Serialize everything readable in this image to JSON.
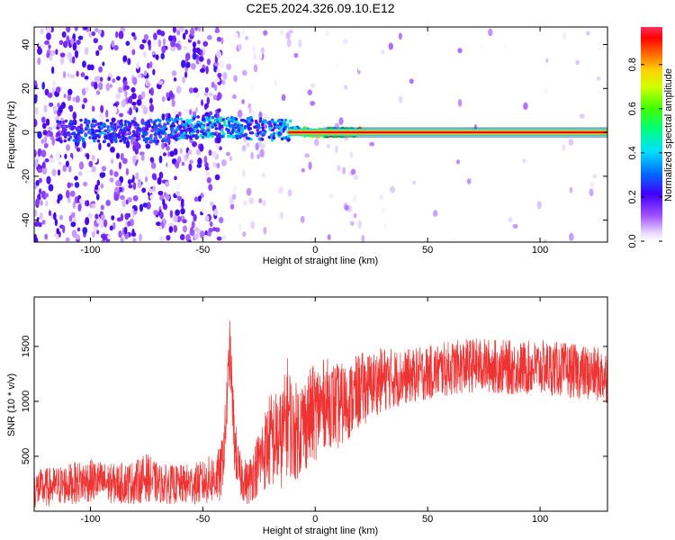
{
  "title": "C2E5.2024.326.09.10.E12",
  "chart_data": [
    {
      "type": "heatmap",
      "title": "",
      "xlabel": "Height of straight line (km)",
      "ylabel": "Frequency (Hz)",
      "xlim": [
        -125,
        130
      ],
      "ylim": [
        -50,
        48
      ],
      "xticks": [
        -100,
        -50,
        0,
        50,
        100
      ],
      "yticks": [
        -40,
        -20,
        0,
        20,
        40
      ],
      "grid": false,
      "colorbar": {
        "label": "Normalized spectral amplitude",
        "range": [
          0,
          0.97
        ],
        "ticks": [
          "0.0",
          "0.2",
          "0.4",
          "0.6",
          "0.8"
        ],
        "colormap": "rainbow"
      },
      "description_points": {
        "x": [
          -120,
          -100,
          -80,
          -45,
          -30,
          -15,
          0,
          20,
          50,
          100,
          130
        ],
        "center_frequency": [
          0,
          1,
          0,
          3,
          2,
          1,
          0,
          0,
          0,
          0,
          0
        ],
        "peak_amplitude": [
          0.25,
          0.45,
          0.35,
          0.55,
          0.45,
          0.5,
          0.97,
          0.97,
          0.97,
          0.97,
          0.97
        ]
      }
    },
    {
      "type": "line",
      "title": "",
      "xlabel": "Height of straight line (km)",
      "ylabel": "SNR (10 * v/v)",
      "xlim": [
        -125,
        130
      ],
      "ylim": [
        0,
        1950
      ],
      "xticks": [
        -100,
        -50,
        0,
        50,
        100
      ],
      "yticks": [
        500,
        1000,
        1500
      ],
      "grid": false,
      "series": [
        {
          "color": "#ee3333",
          "x": [
            -125,
            -115,
            -100,
            -90,
            -80,
            -75,
            -70,
            -60,
            -50,
            -42,
            -40,
            -38,
            -36,
            -34,
            -30,
            -25,
            -20,
            -15,
            -12,
            -10,
            -5,
            0,
            5,
            10,
            15,
            20,
            25,
            30,
            40,
            50,
            60,
            70,
            80,
            90,
            100,
            110,
            120,
            130
          ],
          "y": [
            200,
            230,
            280,
            250,
            260,
            310,
            250,
            240,
            260,
            330,
            700,
            1500,
            650,
            350,
            250,
            450,
            650,
            650,
            900,
            700,
            800,
            900,
            1000,
            950,
            1000,
            1100,
            1150,
            1200,
            1220,
            1260,
            1300,
            1330,
            1320,
            1300,
            1310,
            1290,
            1260,
            1230
          ],
          "noise_amplitude": [
            180,
            180,
            200,
            180,
            200,
            220,
            180,
            180,
            200,
            260,
            300,
            250,
            300,
            220,
            200,
            300,
            450,
            450,
            550,
            450,
            450,
            450,
            400,
            400,
            350,
            350,
            300,
            300,
            250,
            250,
            250,
            250,
            250,
            250,
            250,
            250,
            250,
            250
          ]
        }
      ]
    }
  ]
}
